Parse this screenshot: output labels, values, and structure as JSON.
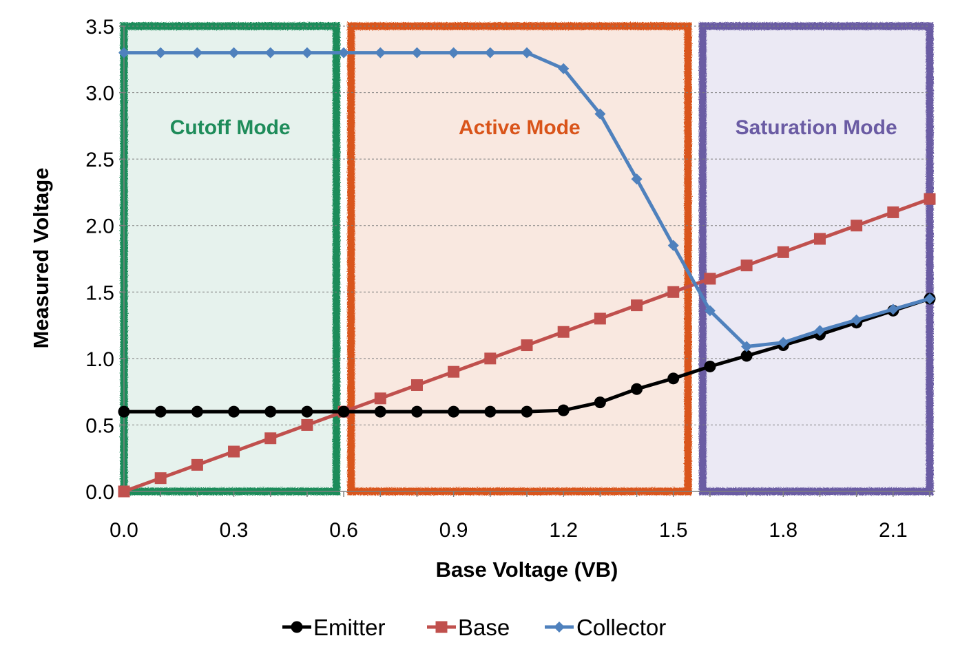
{
  "chart_data": {
    "type": "line",
    "title": "",
    "xlabel": "Base Voltage (VB)",
    "ylabel": "Measured Voltage",
    "xlim": [
      0.0,
      2.2
    ],
    "ylim": [
      0.0,
      3.5
    ],
    "x": [
      0.0,
      0.1,
      0.2,
      0.3,
      0.4,
      0.5,
      0.6,
      0.7,
      0.8,
      0.9,
      1.0,
      1.1,
      1.2,
      1.3,
      1.4,
      1.5,
      1.6,
      1.7,
      1.8,
      1.9,
      2.0,
      2.1,
      2.2
    ],
    "x_ticks": [
      "0.0",
      "0.3",
      "0.6",
      "0.9",
      "1.2",
      "1.5",
      "1.8",
      "2.1"
    ],
    "x_tick_values": [
      0.0,
      0.3,
      0.6,
      0.9,
      1.2,
      1.5,
      1.8,
      2.1
    ],
    "y_ticks": [
      "0.0",
      "0.5",
      "1.0",
      "1.5",
      "2.0",
      "2.5",
      "3.0",
      "3.5"
    ],
    "y_tick_values": [
      0.0,
      0.5,
      1.0,
      1.5,
      2.0,
      2.5,
      3.0,
      3.5
    ],
    "grid": true,
    "legend_position": "bottom-center",
    "series": [
      {
        "name": "Emitter",
        "color": "#000000",
        "marker": "circle",
        "values": [
          0.6,
          0.6,
          0.6,
          0.6,
          0.6,
          0.6,
          0.6,
          0.6,
          0.6,
          0.6,
          0.6,
          0.6,
          0.61,
          0.67,
          0.77,
          0.85,
          0.94,
          1.02,
          1.1,
          1.18,
          1.27,
          1.36,
          1.45
        ]
      },
      {
        "name": "Base",
        "color": "#c0504d",
        "marker": "square",
        "values": [
          0.0,
          0.1,
          0.2,
          0.3,
          0.4,
          0.5,
          0.6,
          0.7,
          0.8,
          0.9,
          1.0,
          1.1,
          1.2,
          1.3,
          1.4,
          1.5,
          1.6,
          1.7,
          1.8,
          1.9,
          2.0,
          2.1,
          2.2
        ]
      },
      {
        "name": "Collector",
        "color": "#4f81bd",
        "marker": "diamond",
        "values": [
          3.3,
          3.3,
          3.3,
          3.3,
          3.3,
          3.3,
          3.3,
          3.3,
          3.3,
          3.3,
          3.3,
          3.3,
          3.18,
          2.84,
          2.35,
          1.85,
          1.36,
          1.09,
          1.12,
          1.21,
          1.29,
          1.37,
          1.45
        ]
      }
    ],
    "regions": [
      {
        "label": "Cutoff Mode",
        "x_start": 0.0,
        "x_end": 0.58,
        "color": "#1e8c5a",
        "fill": "#e6f2ed"
      },
      {
        "label": "Active Mode",
        "x_start": 0.62,
        "x_end": 1.54,
        "color": "#d9541a",
        "fill": "#f9e8e0"
      },
      {
        "label": "Saturation Mode",
        "x_start": 1.58,
        "x_end": 2.2,
        "color": "#6a5ba3",
        "fill": "#ebe9f4"
      }
    ]
  }
}
